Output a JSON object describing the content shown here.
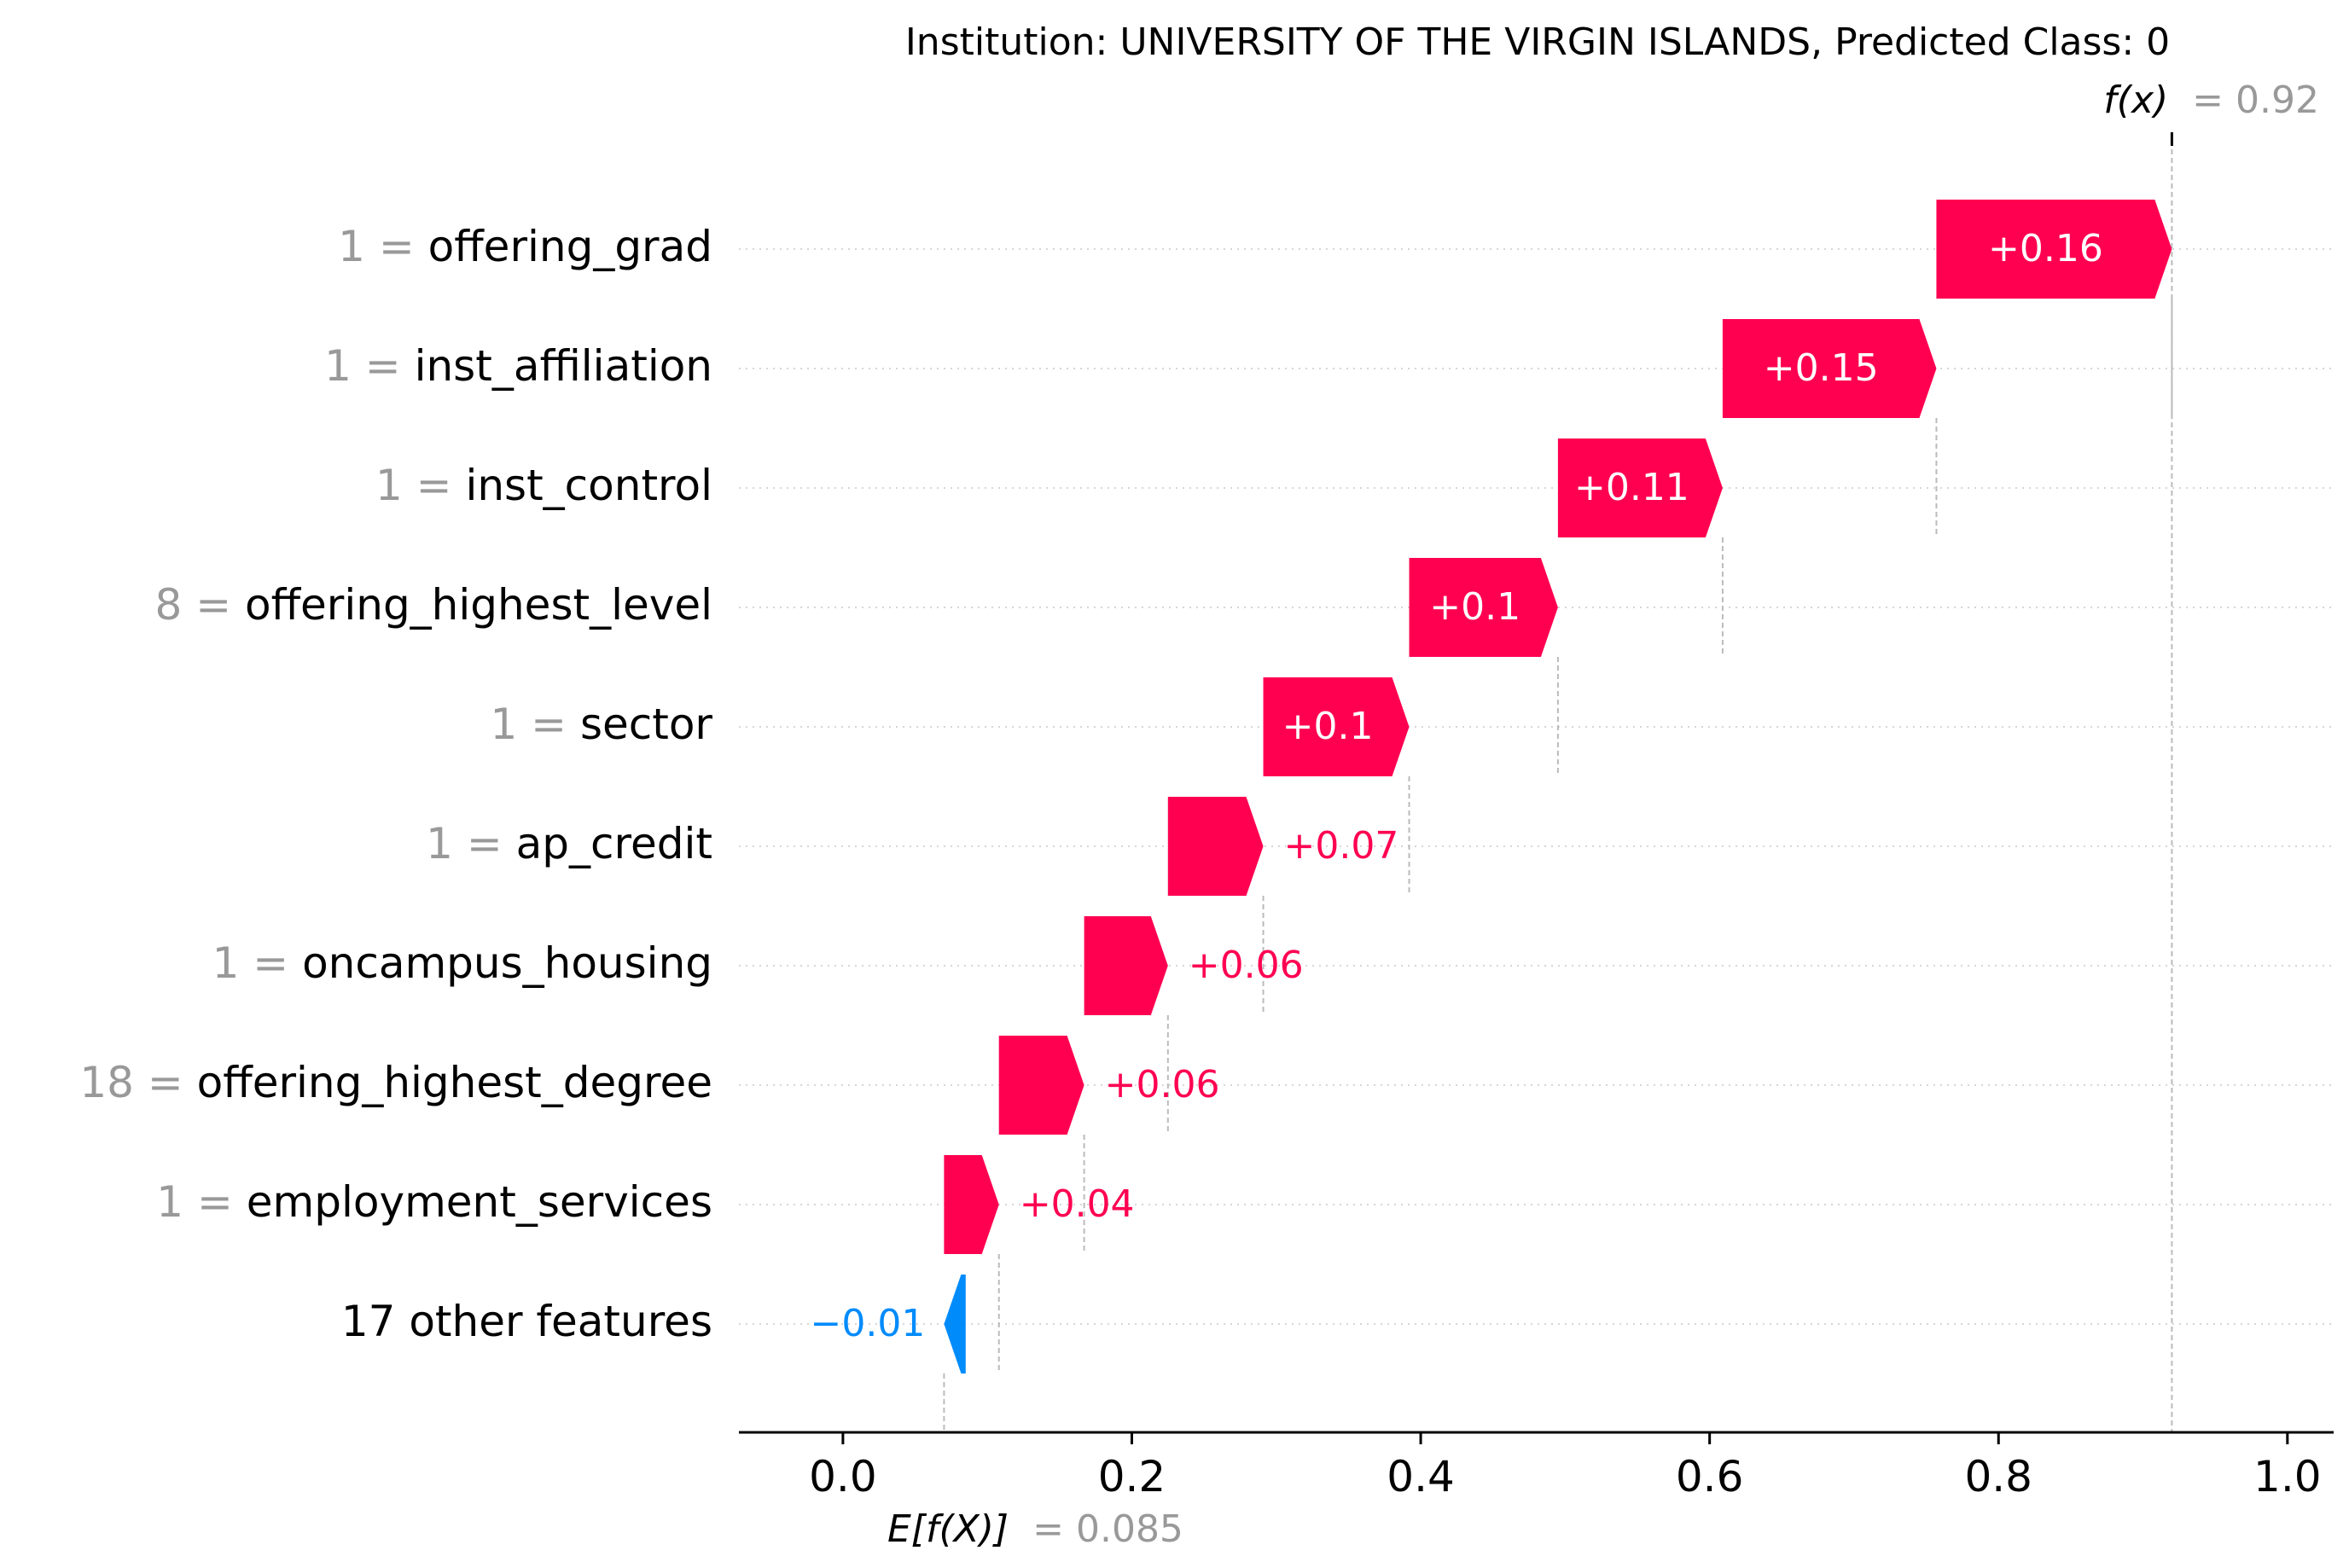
{
  "chart_data": {
    "type": "waterfall",
    "title": "Institution: UNIVERSITY OF THE VIRGIN ISLANDS, Predicted Class: 0",
    "fx": {
      "label": "f(x)",
      "value_text": "= 0.92",
      "value": 0.92
    },
    "base": {
      "label": "E[f(X)]",
      "value_text": "= 0.085",
      "value": 0.085
    },
    "xlim": [
      -0.072,
      1.032
    ],
    "xticks": [
      0.0,
      0.2,
      0.4,
      0.6,
      0.8,
      1.0
    ],
    "xtick_labels": [
      "0.0",
      "0.2",
      "0.4",
      "0.6",
      "0.8",
      "1.0"
    ],
    "colors": {
      "positive": "#ff0051",
      "negative": "#008bfb",
      "grey": "#999999",
      "text": "#000000"
    },
    "features": [
      {
        "value": "1",
        "name": "offering_grad",
        "start": 0.757,
        "end": 0.92,
        "label": "+0.16"
      },
      {
        "value": "1",
        "name": "inst_affiliation",
        "start": 0.609,
        "end": 0.757,
        "label": "+0.15"
      },
      {
        "value": "1",
        "name": "inst_control",
        "start": 0.495,
        "end": 0.609,
        "label": "+0.11"
      },
      {
        "value": "8",
        "name": "offering_highest_level",
        "start": 0.392,
        "end": 0.495,
        "label": "+0.1"
      },
      {
        "value": "1",
        "name": "sector",
        "start": 0.291,
        "end": 0.392,
        "label": "+0.1"
      },
      {
        "value": "1",
        "name": "ap_credit",
        "start": 0.225,
        "end": 0.291,
        "label": "+0.07"
      },
      {
        "value": "1",
        "name": "oncampus_housing",
        "start": 0.167,
        "end": 0.225,
        "label": "+0.06"
      },
      {
        "value": "18",
        "name": "offering_highest_degree",
        "start": 0.108,
        "end": 0.167,
        "label": "+0.06"
      },
      {
        "value": "1",
        "name": "employment_services",
        "start": 0.07,
        "end": 0.108,
        "label": "+0.04"
      },
      {
        "value": "",
        "name": "17 other features",
        "start": 0.085,
        "end": 0.07,
        "label": "−0.01"
      }
    ]
  }
}
